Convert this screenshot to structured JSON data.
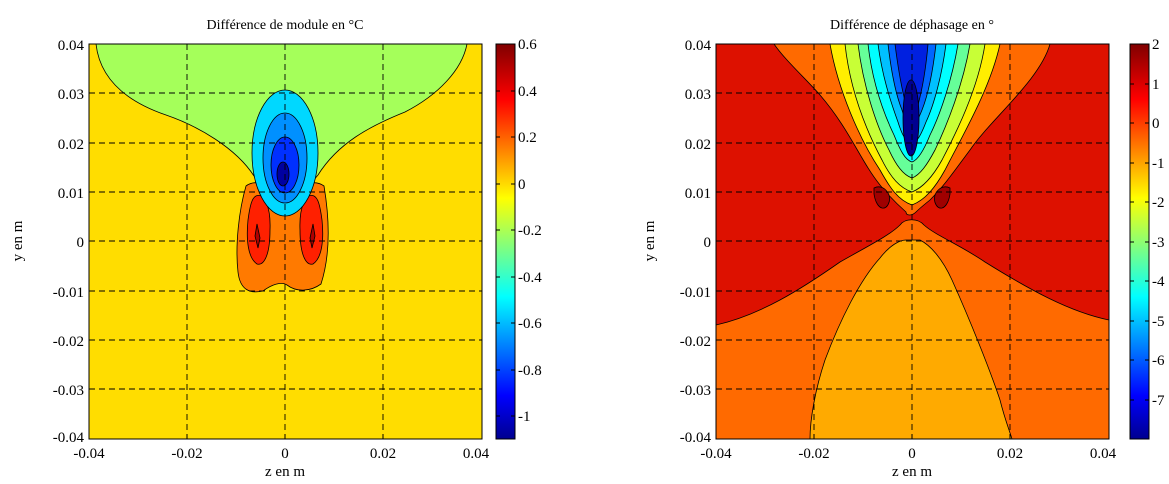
{
  "chart_data": [
    {
      "type": "contour",
      "title": "Différence de module en °C",
      "xlabel": "z en m",
      "ylabel": "y en m",
      "xlim": [
        -0.04,
        0.04
      ],
      "ylim": [
        -0.04,
        0.04
      ],
      "x_ticks": [
        "-0.04",
        "-0.02",
        "0",
        "0.02",
        "0.04"
      ],
      "y_ticks": [
        "0.04",
        "0.03",
        "0.02",
        "0.01",
        "0",
        "-0.01",
        "-0.02",
        "-0.03",
        "-0.04"
      ],
      "grid": true,
      "colorbar": {
        "range": [
          -1.1,
          0.6
        ],
        "ticks": [
          "0.6",
          "0.4",
          "0.2",
          "0",
          "-0.2",
          "-0.4",
          "-0.6",
          "-0.8",
          "-1"
        ]
      }
    },
    {
      "type": "contour",
      "title": "Différence de déphasage en °",
      "xlabel": "z en m",
      "ylabel": "y en m",
      "xlim": [
        -0.04,
        0.04
      ],
      "ylim": [
        -0.04,
        0.04
      ],
      "x_ticks": [
        "-0.04",
        "-0.02",
        "0",
        "0.02",
        "0.04"
      ],
      "y_ticks": [
        "0.04",
        "0.03",
        "0.02",
        "0.01",
        "0",
        "-0.01",
        "-0.02",
        "-0.03",
        "-0.04"
      ],
      "grid": true,
      "colorbar": {
        "range": [
          -8,
          2
        ],
        "ticks": [
          "2",
          "1",
          "0",
          "-1",
          "-2",
          "-3",
          "-4",
          "-5",
          "-6",
          "-7"
        ]
      }
    }
  ]
}
